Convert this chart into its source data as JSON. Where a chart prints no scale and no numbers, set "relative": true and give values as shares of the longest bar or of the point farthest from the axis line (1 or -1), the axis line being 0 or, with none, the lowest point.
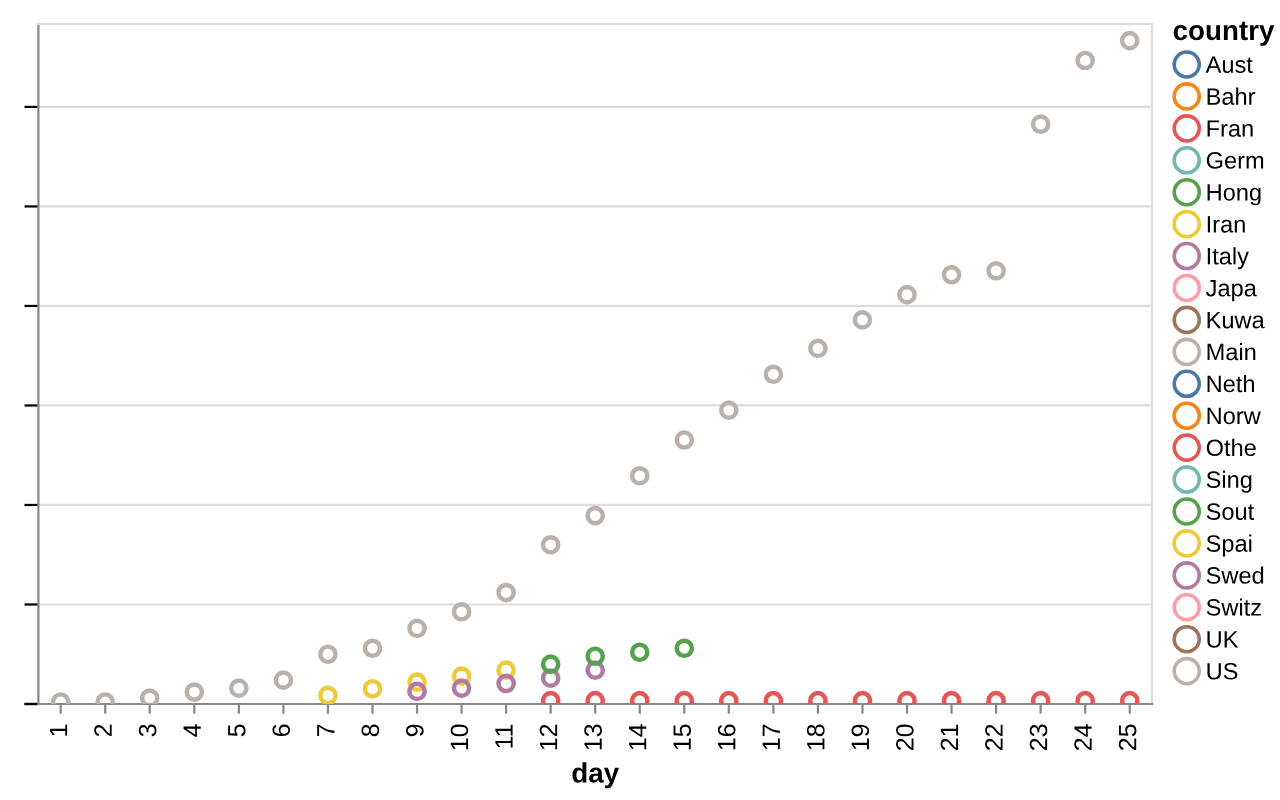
{
  "chart_data": {
    "type": "scatter",
    "xlabel": "day",
    "legend_title": "country",
    "legend": "right",
    "grid": "y",
    "relative": true,
    "marker": "circle",
    "categories": [
      "1",
      "2",
      "3",
      "4",
      "5",
      "6",
      "7",
      "8",
      "9",
      "10",
      "11",
      "12",
      "13",
      "14",
      "15",
      "16",
      "17",
      "18",
      "19",
      "20",
      "21",
      "22",
      "23",
      "24",
      "25"
    ],
    "series": [
      {
        "name": "Aust",
        "color": "#4c78a8",
        "values": [
          null,
          null,
          null,
          null,
          null,
          null,
          null,
          null,
          null,
          null,
          null,
          null,
          null,
          null,
          null,
          null,
          null,
          null,
          null,
          null,
          null,
          null,
          null,
          null,
          null
        ]
      },
      {
        "name": "Bahr",
        "color": "#f58518",
        "values": [
          null,
          null,
          null,
          null,
          null,
          null,
          null,
          null,
          null,
          null,
          null,
          null,
          null,
          null,
          null,
          null,
          null,
          null,
          null,
          null,
          null,
          null,
          null,
          null,
          null
        ]
      },
      {
        "name": "Fran",
        "color": "#e45756",
        "values": [
          null,
          null,
          null,
          null,
          null,
          null,
          null,
          null,
          null,
          null,
          null,
          0.005,
          0.005,
          0.005,
          0.005,
          0.005,
          0.005,
          0.005,
          0.005,
          0.005,
          0.005,
          0.005,
          0.005,
          0.005,
          0.005
        ]
      },
      {
        "name": "Germ",
        "color": "#72b7b2",
        "values": [
          null,
          null,
          null,
          null,
          null,
          null,
          null,
          null,
          null,
          null,
          null,
          null,
          null,
          null,
          null,
          null,
          null,
          null,
          null,
          null,
          null,
          null,
          null,
          null,
          null
        ]
      },
      {
        "name": "Hong",
        "color": "#54a24b",
        "values": [
          null,
          null,
          null,
          null,
          null,
          null,
          null,
          null,
          null,
          null,
          null,
          null,
          null,
          null,
          null,
          null,
          null,
          null,
          null,
          null,
          null,
          null,
          null,
          null,
          null
        ]
      },
      {
        "name": "Iran",
        "color": "#eeca3b",
        "values": [
          null,
          null,
          null,
          null,
          null,
          null,
          0.013,
          0.023,
          0.033,
          0.042,
          0.051,
          null,
          null,
          null,
          null,
          null,
          null,
          null,
          null,
          null,
          null,
          null,
          null,
          null,
          null
        ]
      },
      {
        "name": "Italy",
        "color": "#b279a2",
        "values": [
          null,
          null,
          null,
          null,
          null,
          null,
          null,
          null,
          0.019,
          0.024,
          0.031,
          0.039,
          0.051,
          null,
          null,
          null,
          null,
          null,
          null,
          null,
          null,
          null,
          null,
          null,
          null
        ]
      },
      {
        "name": "Japa",
        "color": "#ff9da6",
        "values": [
          null,
          null,
          null,
          null,
          null,
          null,
          null,
          null,
          null,
          null,
          null,
          null,
          null,
          null,
          null,
          null,
          null,
          null,
          null,
          null,
          null,
          null,
          null,
          null,
          null
        ]
      },
      {
        "name": "Kuwa",
        "color": "#9d755d",
        "values": [
          null,
          null,
          null,
          null,
          null,
          null,
          null,
          null,
          null,
          null,
          null,
          null,
          null,
          null,
          null,
          null,
          null,
          null,
          null,
          null,
          null,
          null,
          null,
          null,
          null
        ]
      },
      {
        "name": "Main",
        "color": "#bab0ac",
        "values": [
          0.003,
          0.003,
          0.009,
          0.018,
          0.024,
          0.036,
          0.075,
          0.084,
          0.114,
          0.139,
          0.168,
          0.24,
          0.284,
          0.344,
          0.398,
          0.443,
          0.497,
          0.536,
          0.579,
          0.617,
          0.647,
          0.653,
          0.874,
          0.97,
          1
        ]
      },
      {
        "name": "Neth",
        "color": "#4c78a8",
        "values": [
          null,
          null,
          null,
          null,
          null,
          null,
          null,
          null,
          null,
          null,
          null,
          null,
          null,
          null,
          null,
          null,
          null,
          null,
          null,
          null,
          null,
          null,
          null,
          null,
          null
        ]
      },
      {
        "name": "Norw",
        "color": "#f58518",
        "values": [
          null,
          null,
          null,
          null,
          null,
          null,
          null,
          null,
          null,
          null,
          null,
          null,
          null,
          null,
          null,
          null,
          null,
          null,
          null,
          null,
          null,
          null,
          null,
          null,
          null
        ]
      },
      {
        "name": "Othe",
        "color": "#e45756",
        "values": [
          null,
          null,
          null,
          null,
          null,
          null,
          null,
          null,
          null,
          null,
          null,
          null,
          null,
          null,
          null,
          null,
          null,
          null,
          null,
          null,
          null,
          null,
          null,
          null,
          null
        ]
      },
      {
        "name": "Sing",
        "color": "#72b7b2",
        "values": [
          null,
          null,
          null,
          null,
          null,
          null,
          null,
          null,
          null,
          null,
          null,
          null,
          null,
          null,
          null,
          null,
          null,
          null,
          null,
          null,
          null,
          null,
          null,
          null,
          null
        ]
      },
      {
        "name": "Sout",
        "color": "#54a24b",
        "values": [
          null,
          null,
          null,
          null,
          null,
          null,
          null,
          null,
          null,
          null,
          null,
          0.06,
          0.072,
          0.078,
          0.084,
          null,
          null,
          null,
          null,
          null,
          null,
          null,
          null,
          null,
          null
        ]
      },
      {
        "name": "Spai",
        "color": "#eeca3b",
        "values": [
          null,
          null,
          null,
          null,
          null,
          null,
          null,
          null,
          null,
          null,
          null,
          null,
          null,
          null,
          null,
          null,
          null,
          null,
          null,
          null,
          null,
          null,
          null,
          null,
          null
        ]
      },
      {
        "name": "Swed",
        "color": "#b279a2",
        "values": [
          null,
          null,
          null,
          null,
          null,
          null,
          null,
          null,
          null,
          null,
          null,
          null,
          null,
          null,
          null,
          null,
          null,
          null,
          null,
          null,
          null,
          null,
          null,
          null,
          null
        ]
      },
      {
        "name": "Switz",
        "color": "#ff9da6",
        "values": [
          null,
          null,
          null,
          null,
          null,
          null,
          null,
          null,
          null,
          null,
          null,
          null,
          null,
          null,
          null,
          null,
          null,
          null,
          null,
          null,
          null,
          null,
          null,
          null,
          null
        ]
      },
      {
        "name": "UK",
        "color": "#9d755d",
        "values": [
          null,
          null,
          null,
          null,
          null,
          null,
          null,
          null,
          null,
          null,
          null,
          null,
          null,
          null,
          null,
          null,
          null,
          null,
          null,
          null,
          null,
          null,
          null,
          null,
          null
        ]
      },
      {
        "name": "US",
        "color": "#bab0ac",
        "values": [
          null,
          null,
          null,
          null,
          null,
          null,
          null,
          null,
          null,
          null,
          null,
          null,
          null,
          null,
          null,
          null,
          null,
          null,
          null,
          null,
          null,
          null,
          null,
          null,
          null
        ]
      }
    ]
  }
}
